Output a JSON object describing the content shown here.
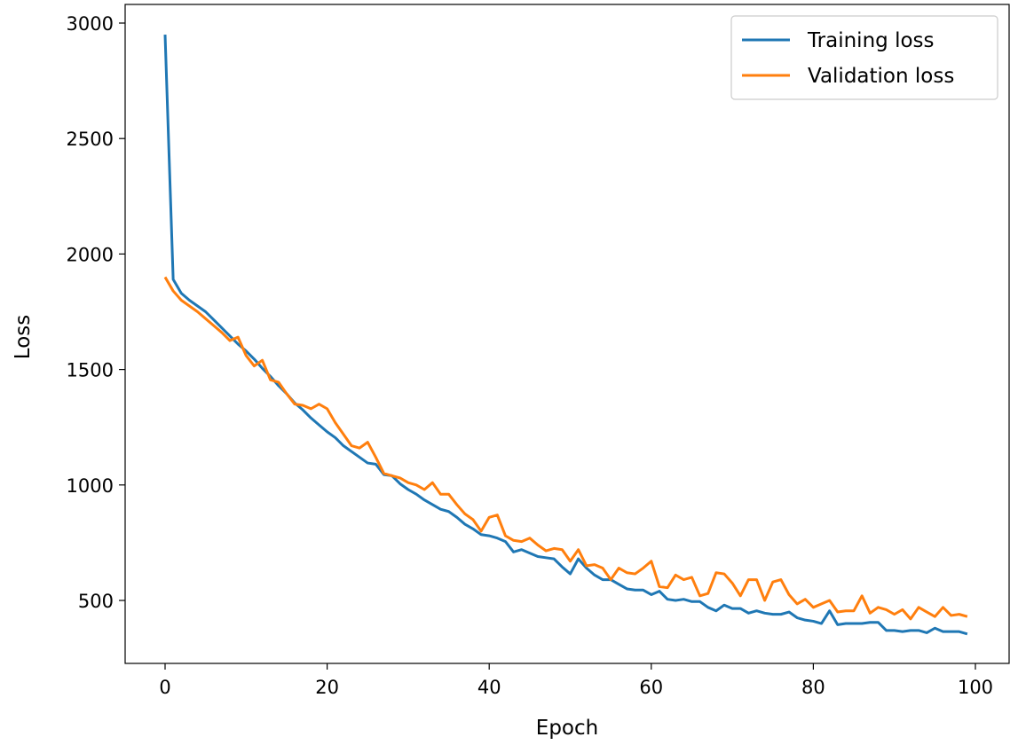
{
  "chart_data": {
    "type": "line",
    "title": "",
    "xlabel": "Epoch",
    "ylabel": "Loss",
    "xlim": [
      -5,
      104
    ],
    "ylim": [
      255,
      3075
    ],
    "xticks": [
      0,
      20,
      40,
      60,
      80,
      100
    ],
    "yticks": [
      500,
      1000,
      1500,
      2000,
      2500,
      3000
    ],
    "grid": false,
    "legend_position": "top-right",
    "series": [
      {
        "name": "Training loss",
        "color": "#1f77b4",
        "values": [
          2950,
          1890,
          1830,
          1800,
          1775,
          1750,
          1715,
          1680,
          1645,
          1610,
          1580,
          1545,
          1505,
          1470,
          1430,
          1395,
          1355,
          1325,
          1290,
          1260,
          1230,
          1205,
          1170,
          1145,
          1120,
          1095,
          1090,
          1045,
          1040,
          1005,
          980,
          960,
          935,
          915,
          895,
          885,
          860,
          830,
          810,
          785,
          780,
          770,
          755,
          710,
          720,
          705,
          690,
          685,
          680,
          645,
          615,
          680,
          640,
          610,
          590,
          590,
          570,
          550,
          545,
          545,
          525,
          540,
          505,
          500,
          505,
          495,
          495,
          470,
          455,
          480,
          465,
          465,
          445,
          455,
          445,
          440,
          440,
          450,
          425,
          415,
          410,
          400,
          455,
          395,
          400,
          400,
          400,
          405,
          405,
          370,
          370,
          365,
          370,
          370,
          360,
          380,
          365,
          365,
          365,
          355
        ]
      },
      {
        "name": "Validation loss",
        "color": "#ff7f0e",
        "values": [
          1900,
          1840,
          1800,
          1775,
          1750,
          1720,
          1690,
          1660,
          1625,
          1640,
          1560,
          1515,
          1540,
          1455,
          1445,
          1395,
          1350,
          1345,
          1330,
          1350,
          1330,
          1270,
          1220,
          1170,
          1160,
          1185,
          1120,
          1050,
          1040,
          1030,
          1010,
          1000,
          980,
          1010,
          960,
          960,
          915,
          875,
          850,
          800,
          860,
          870,
          780,
          760,
          755,
          770,
          740,
          715,
          725,
          720,
          670,
          720,
          650,
          655,
          640,
          590,
          640,
          620,
          615,
          640,
          670,
          560,
          555,
          610,
          590,
          600,
          520,
          530,
          620,
          615,
          575,
          520,
          590,
          590,
          500,
          580,
          590,
          525,
          485,
          505,
          470,
          485,
          500,
          450,
          455,
          455,
          520,
          445,
          470,
          460,
          440,
          460,
          420,
          470,
          450,
          430,
          470,
          435,
          440,
          430
        ]
      }
    ]
  }
}
